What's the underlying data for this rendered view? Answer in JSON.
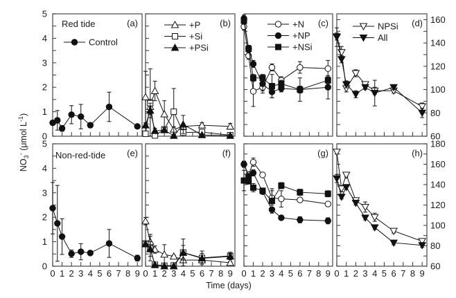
{
  "figure": {
    "xlabel": "Time (days)",
    "ylabel": {
      "base": "NO",
      "sub": "3",
      "sup": "-",
      "unit": " (μmol L",
      "unit_sup": "-1",
      "close": ")"
    }
  },
  "chart_data": [
    {
      "panel": "a",
      "label": "(a)",
      "title": "Red tide",
      "type": "line",
      "xlim": [
        0,
        9.5
      ],
      "ylim": [
        0,
        5
      ],
      "xticks": [
        "0",
        "1",
        "2",
        "3",
        "4",
        "5",
        "6",
        "7",
        "8",
        "9"
      ],
      "show_xtick_labels": false,
      "yticks": [
        "0",
        "1",
        "2",
        "3",
        "4",
        "5"
      ],
      "ytick_labels": "left",
      "right_ticks": false,
      "legend": true,
      "x": [
        0,
        0.5,
        1,
        2,
        3,
        4,
        6,
        9
      ],
      "series": [
        {
          "name": "Control",
          "marker": "filled-circle",
          "values": [
            0.55,
            0.65,
            0.32,
            0.88,
            0.8,
            0.45,
            1.2,
            0.4
          ],
          "error": [
            0.1,
            0.4,
            0.12,
            0.37,
            0.5,
            0.1,
            0.6,
            0.08
          ]
        }
      ]
    },
    {
      "panel": "b",
      "label": "(b)",
      "title": "",
      "type": "line",
      "xlim": [
        0,
        9.5
      ],
      "ylim": [
        0,
        5
      ],
      "xticks": [
        "0",
        "1",
        "2",
        "3",
        "4",
        "5",
        "6",
        "7",
        "8",
        "9"
      ],
      "show_xtick_labels": false,
      "yticks": [
        "0",
        "1",
        "2",
        "3",
        "4",
        "5"
      ],
      "ytick_labels": "none",
      "right_ticks": false,
      "legend": true,
      "x": [
        0,
        0.5,
        1,
        2,
        3,
        4,
        6,
        9
      ],
      "series": [
        {
          "name": "+P",
          "marker": "open-triangle-up",
          "values": [
            1.6,
            1.2,
            1.85,
            0.9,
            0.28,
            0.4,
            0.45,
            0.4
          ],
          "error": [
            1.05,
            0.3,
            0.4,
            0.55,
            0.1,
            0.1,
            0.1,
            0.12
          ]
        },
        {
          "name": "+Si",
          "marker": "open-square",
          "values": [
            0.1,
            1.35,
            0.03,
            0.28,
            1.0,
            0.15,
            0.17,
            0.04
          ],
          "error": [
            0.05,
            1.4,
            0.05,
            0.1,
            0.95,
            0.1,
            0.1,
            0.05
          ]
        },
        {
          "name": "+PSi",
          "marker": "filled-triangle-up",
          "values": [
            0.45,
            1.05,
            0.22,
            0.25,
            0.02,
            0.48,
            0.05,
            0.02
          ],
          "error": [
            0.1,
            0.3,
            0.1,
            0.1,
            0.05,
            0.37,
            0.05,
            0.05
          ]
        }
      ]
    },
    {
      "panel": "c",
      "label": "(c)",
      "title": "",
      "type": "line",
      "xlim": [
        0,
        9.5
      ],
      "ylim": [
        60,
        165
      ],
      "xticks": [
        "0",
        "1",
        "2",
        "3",
        "4",
        "5",
        "6",
        "7",
        "8",
        "9"
      ],
      "show_xtick_labels": false,
      "yticks": [
        "60",
        "80",
        "100",
        "120",
        "140",
        "160"
      ],
      "ytick_labels": "none",
      "right_ticks": false,
      "legend": true,
      "x": [
        0,
        0.5,
        1,
        2,
        3,
        4,
        6,
        9
      ],
      "series": [
        {
          "name": "+N",
          "marker": "open-circle",
          "values": [
            154,
            129,
            98.5,
            102,
            119,
            108,
            119,
            118
          ],
          "error": [
            3,
            3,
            13,
            5,
            3,
            3,
            5,
            7
          ]
        },
        {
          "name": "+NP",
          "marker": "filled-circle",
          "values": [
            161,
            135,
            122,
            105,
            98,
            101,
            100,
            102
          ],
          "error": [
            3,
            3,
            3,
            6,
            5,
            3,
            3,
            10
          ]
        },
        {
          "name": "+NSi",
          "marker": "filled-square",
          "values": [
            159,
            135,
            110,
            110,
            103,
            105,
            100,
            108
          ],
          "error": [
            3,
            3,
            3,
            3,
            10,
            3,
            10,
            3
          ]
        }
      ]
    },
    {
      "panel": "d",
      "label": "(d)",
      "title": "",
      "type": "line",
      "xlim": [
        0,
        9.5
      ],
      "ylim": [
        60,
        165
      ],
      "xticks": [
        "0",
        "1",
        "2",
        "3",
        "4",
        "5",
        "6",
        "7",
        "8",
        "9"
      ],
      "show_xtick_labels": false,
      "yticks": [
        "60",
        "80",
        "100",
        "120",
        "140",
        "160"
      ],
      "ytick_labels": "right",
      "right_ticks": true,
      "legend": true,
      "x": [
        0,
        0.5,
        1,
        2,
        3,
        4,
        6,
        9
      ],
      "series": [
        {
          "name": "NPSi",
          "marker": "open-triangle-down",
          "values": [
            145,
            132,
            101,
            114,
            104.5,
            99,
            99,
            85.5
          ],
          "error": [
            8,
            5,
            3,
            3,
            2,
            3,
            2,
            3
          ]
        },
        {
          "name": "All",
          "marker": "filled-triangle-down",
          "values": [
            145.5,
            126,
            104.5,
            96,
            102,
            97,
            102,
            80
          ],
          "error": [
            3,
            3,
            3,
            3,
            2,
            11,
            2,
            4
          ]
        }
      ]
    },
    {
      "panel": "e",
      "label": "(e)",
      "title": "Non-red-tide",
      "type": "line",
      "xlim": [
        0,
        9.5
      ],
      "ylim": [
        0,
        5
      ],
      "xticks": [
        "0",
        "1",
        "2",
        "3",
        "4",
        "5",
        "6",
        "7",
        "8",
        "9"
      ],
      "show_xtick_labels": true,
      "yticks": [
        "0",
        "1",
        "2",
        "3",
        "4",
        "5"
      ],
      "ytick_labels": "left",
      "right_ticks": false,
      "legend": false,
      "x": [
        0,
        0.5,
        1,
        2,
        3,
        4,
        6,
        9
      ],
      "series": [
        {
          "name": "Control",
          "marker": "filled-circle",
          "values": [
            2.37,
            1.75,
            1.21,
            0.51,
            0.59,
            0.54,
            0.93,
            0.33
          ],
          "error": [
            1.05,
            1.55,
            0.73,
            0.15,
            0.33,
            0.08,
            0.57,
            0.12
          ]
        }
      ]
    },
    {
      "panel": "f",
      "label": "(f)",
      "title": "",
      "type": "line",
      "xlim": [
        0,
        9.5
      ],
      "ylim": [
        0,
        5
      ],
      "xticks": [
        "0",
        "1",
        "2",
        "3",
        "4",
        "5",
        "6",
        "7",
        "8",
        "9"
      ],
      "show_xtick_labels": true,
      "yticks": [
        "0",
        "1",
        "2",
        "3",
        "4",
        "5"
      ],
      "ytick_labels": "none",
      "right_ticks": false,
      "legend": false,
      "x": [
        0,
        0.5,
        1,
        2,
        3,
        4,
        6,
        9
      ],
      "series": [
        {
          "name": "+P",
          "marker": "open-triangle-up",
          "values": [
            1.84,
            1.0,
            0.68,
            0.48,
            0.4,
            0.25,
            0.25,
            0.14
          ],
          "error": [
            0.15,
            0.3,
            0.15,
            0.4,
            0.05,
            0.05,
            0.05,
            0.05
          ]
        },
        {
          "name": "+Si",
          "marker": "open-square",
          "values": [
            0.93,
            0.72,
            0.06,
            0.02,
            0.03,
            0.56,
            0.34,
            0.42
          ],
          "error": [
            0.1,
            0.5,
            0.05,
            0.05,
            0.05,
            0.55,
            0.28,
            0.15
          ]
        },
        {
          "name": "+PSi",
          "marker": "filled-triangle-up",
          "values": [
            0.9,
            0.7,
            0.05,
            0.0,
            0.0,
            0.55,
            0.32,
            0.4
          ],
          "error": [
            0.1,
            0.3,
            0.05,
            0.05,
            0.05,
            0.3,
            0.2,
            0.1
          ]
        }
      ]
    },
    {
      "panel": "g",
      "label": "(g)",
      "title": "",
      "type": "line",
      "xlim": [
        0,
        9.5
      ],
      "ylim": [
        60,
        180
      ],
      "xticks": [
        "0",
        "1",
        "2",
        "3",
        "4",
        "5",
        "6",
        "7",
        "8",
        "9"
      ],
      "show_xtick_labels": true,
      "yticks": [
        "60",
        "80",
        "100",
        "120",
        "140",
        "160",
        "180"
      ],
      "ytick_labels": "none",
      "right_ticks": false,
      "legend": false,
      "x": [
        0,
        0.5,
        1,
        2,
        3,
        4,
        6,
        9
      ],
      "series": [
        {
          "name": "+N",
          "marker": "open-circle",
          "values": [
            160,
            149.5,
            162,
            149.5,
            127,
            126,
            125,
            121
          ],
          "error": [
            3,
            3,
            4,
            2,
            7,
            8,
            2,
            2
          ]
        },
        {
          "name": "+NP",
          "marker": "filled-circle",
          "values": [
            160,
            148,
            151.5,
            133,
            115.5,
            107.5,
            105.5,
            104.5
          ],
          "error": [
            3,
            3,
            3,
            2,
            2,
            2,
            3,
            3
          ]
        },
        {
          "name": "+NSi",
          "marker": "filled-square",
          "values": [
            144,
            143.5,
            137,
            134,
            124,
            139,
            132.5,
            131
          ],
          "error": [
            10,
            3,
            4,
            2,
            12,
            3,
            3,
            3
          ]
        }
      ]
    },
    {
      "panel": "h",
      "label": "(h)",
      "title": "",
      "type": "line",
      "xlim": [
        0,
        9.5
      ],
      "ylim": [
        60,
        180
      ],
      "xticks": [
        "0",
        "1",
        "2",
        "3",
        "4",
        "5",
        "6",
        "7",
        "8",
        "9"
      ],
      "show_xtick_labels": true,
      "yticks": [
        "60",
        "80",
        "100",
        "120",
        "140",
        "160",
        "180"
      ],
      "ytick_labels": "right",
      "right_ticks": true,
      "legend": false,
      "x": [
        0,
        0.5,
        1,
        2,
        3,
        4,
        6,
        9
      ],
      "series": [
        {
          "name": "NPSi",
          "marker": "open-triangle-down",
          "values": [
            172,
            136,
            149.5,
            124.5,
            118,
            108,
            94.5,
            84.5
          ],
          "error": [
            2,
            3,
            2,
            2,
            5,
            4,
            2,
            2
          ]
        },
        {
          "name": "All",
          "marker": "filled-triangle-down",
          "values": [
            146,
            128,
            137.5,
            122,
            107.5,
            98,
            83,
            80.5
          ],
          "error": [
            4,
            2,
            2,
            2,
            2,
            2,
            2,
            2
          ]
        }
      ]
    }
  ]
}
